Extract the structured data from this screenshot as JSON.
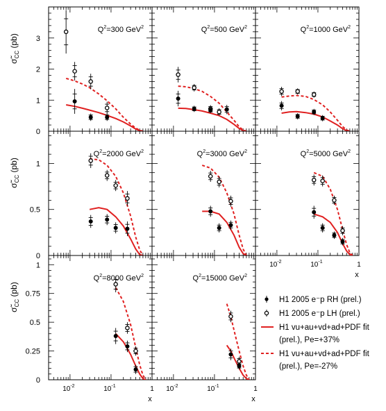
{
  "chart_data": {
    "type": "scatter",
    "xscale": "log",
    "xlim": [
      0.003,
      1.0
    ],
    "xticklabels": [
      "10-2",
      "10-1",
      "1"
    ],
    "xlabel": "x",
    "ylabel": "σ̃CC (pb)",
    "colors": {
      "data": "#000000",
      "fit": "#e02020"
    },
    "legend": {
      "placement": "bottom-right",
      "entries": [
        {
          "key": "rh_data",
          "text": "H1 2005 e⁻p RH (prel.)"
        },
        {
          "key": "lh_data",
          "text": "H1 2005 e⁻p LH (prel.)"
        },
        {
          "key": "rh_fit",
          "text1": "H1 vu+au+vd+ad+PDF fit",
          "text2": "(prel.), Pe=+37%"
        },
        {
          "key": "lh_fit",
          "text1": "H1 vu+au+vd+ad+PDF fit",
          "text2": "(prel.), Pe=-27%"
        }
      ]
    },
    "panels": [
      {
        "label": "Q2=300 GeV2",
        "q2": "300",
        "ylim": [
          0,
          4
        ],
        "yticks": [
          0,
          1,
          2,
          3
        ],
        "series": [
          {
            "key": "lh_data",
            "x": [
              0.008,
              0.013,
              0.032,
              0.08
            ],
            "y": [
              3.2,
              1.93,
              1.6,
              0.75
            ],
            "err": [
              0.7,
              0.3,
              0.25,
              0.2
            ]
          },
          {
            "key": "rh_data",
            "x": [
              0.013,
              0.032,
              0.08
            ],
            "y": [
              0.96,
              0.45,
              0.45
            ],
            "err": [
              0.4,
              0.12,
              0.12
            ]
          },
          {
            "key": "lh_fit",
            "x": [
              0.008,
              0.013,
              0.02,
              0.03,
              0.05,
              0.08,
              0.13,
              0.2,
              0.3,
              0.4,
              0.5,
              0.6
            ],
            "y": [
              1.7,
              1.62,
              1.52,
              1.4,
              1.2,
              0.98,
              0.72,
              0.45,
              0.23,
              0.1,
              0.03,
              0.0
            ]
          },
          {
            "key": "rh_fit",
            "x": [
              0.008,
              0.013,
              0.02,
              0.03,
              0.05,
              0.08,
              0.13,
              0.2,
              0.3,
              0.4,
              0.5,
              0.6
            ],
            "y": [
              0.85,
              0.8,
              0.74,
              0.68,
              0.6,
              0.51,
              0.41,
              0.3,
              0.17,
              0.07,
              0.02,
              0.0
            ]
          }
        ]
      },
      {
        "label": "Q2=500 GeV2",
        "q2": "500",
        "ylim": [
          0,
          4
        ],
        "yticks": [
          0,
          1,
          2,
          3
        ],
        "series": [
          {
            "key": "lh_data",
            "x": [
              0.013,
              0.032,
              0.08,
              0.13
            ],
            "y": [
              1.82,
              1.4,
              0.72,
              0.62
            ],
            "err": [
              0.25,
              0.12,
              0.12,
              0.12
            ]
          },
          {
            "key": "rh_data",
            "x": [
              0.013,
              0.032,
              0.08,
              0.2
            ],
            "y": [
              1.05,
              0.72,
              0.68,
              0.7
            ],
            "err": [
              0.25,
              0.1,
              0.1,
              0.15
            ]
          },
          {
            "key": "lh_fit",
            "x": [
              0.013,
              0.02,
              0.03,
              0.05,
              0.08,
              0.13,
              0.2,
              0.3,
              0.4,
              0.5,
              0.6
            ],
            "y": [
              1.45,
              1.43,
              1.38,
              1.28,
              1.12,
              0.9,
              0.62,
              0.35,
              0.14,
              0.04,
              0.0
            ]
          },
          {
            "key": "rh_fit",
            "x": [
              0.013,
              0.02,
              0.03,
              0.05,
              0.08,
              0.13,
              0.2,
              0.3,
              0.4,
              0.5,
              0.6
            ],
            "y": [
              0.74,
              0.73,
              0.7,
              0.65,
              0.58,
              0.5,
              0.38,
              0.22,
              0.09,
              0.02,
              0.0
            ]
          }
        ]
      },
      {
        "label": "Q2=1000 GeV2",
        "q2": "1000",
        "ylim": [
          0,
          4
        ],
        "yticks": [
          0,
          1,
          2,
          3
        ],
        "series": [
          {
            "key": "lh_data",
            "x": [
              0.013,
              0.032,
              0.08
            ],
            "y": [
              1.28,
              1.28,
              1.18
            ],
            "err": [
              0.15,
              0.1,
              0.1
            ]
          },
          {
            "key": "rh_data",
            "x": [
              0.013,
              0.032,
              0.08,
              0.13
            ],
            "y": [
              0.82,
              0.48,
              0.62,
              0.42
            ],
            "err": [
              0.15,
              0.1,
              0.1,
              0.1
            ]
          },
          {
            "key": "lh_fit",
            "x": [
              0.013,
              0.02,
              0.03,
              0.05,
              0.08,
              0.13,
              0.2,
              0.3,
              0.4,
              0.5,
              0.6
            ],
            "y": [
              1.1,
              1.13,
              1.15,
              1.12,
              1.02,
              0.85,
              0.62,
              0.35,
              0.15,
              0.04,
              0.0
            ]
          },
          {
            "key": "rh_fit",
            "x": [
              0.013,
              0.02,
              0.03,
              0.05,
              0.08,
              0.13,
              0.2,
              0.3,
              0.4,
              0.5,
              0.6
            ],
            "y": [
              0.58,
              0.62,
              0.63,
              0.6,
              0.55,
              0.46,
              0.33,
              0.2,
              0.08,
              0.02,
              0.0
            ]
          }
        ]
      },
      {
        "label": "Q2=2000 GeV2",
        "q2": "2000",
        "ylim": [
          0,
          1.35
        ],
        "yticks": [
          0,
          0.5,
          1
        ],
        "series": [
          {
            "key": "lh_data",
            "x": [
              0.032,
              0.08,
              0.13,
              0.25
            ],
            "y": [
              1.03,
              0.87,
              0.76,
              0.62
            ],
            "err": [
              0.08,
              0.06,
              0.06,
              0.08
            ]
          },
          {
            "key": "rh_data",
            "x": [
              0.032,
              0.08,
              0.13,
              0.25
            ],
            "y": [
              0.37,
              0.39,
              0.3,
              0.29
            ],
            "err": [
              0.07,
              0.06,
              0.06,
              0.08
            ]
          },
          {
            "key": "lh_fit",
            "x": [
              0.03,
              0.05,
              0.08,
              0.13,
              0.2,
              0.3,
              0.4,
              0.5,
              0.6
            ],
            "y": [
              1.05,
              1.04,
              0.98,
              0.86,
              0.68,
              0.43,
              0.2,
              0.06,
              0.0
            ]
          },
          {
            "key": "rh_fit",
            "x": [
              0.03,
              0.05,
              0.08,
              0.13,
              0.2,
              0.3,
              0.4,
              0.5,
              0.6
            ],
            "y": [
              0.5,
              0.52,
              0.5,
              0.42,
              0.32,
              0.18,
              0.07,
              0.01,
              0.0
            ]
          }
        ]
      },
      {
        "label": "Q2=3000 GeV2",
        "q2": "3000",
        "ylim": [
          0,
          1.35
        ],
        "yticks": [
          0,
          0.5,
          1
        ],
        "series": [
          {
            "key": "lh_data",
            "x": [
              0.08,
              0.13,
              0.25
            ],
            "y": [
              0.86,
              0.8,
              0.59
            ],
            "err": [
              0.06,
              0.06,
              0.06
            ]
          },
          {
            "key": "rh_data",
            "x": [
              0.08,
              0.13,
              0.25
            ],
            "y": [
              0.48,
              0.3,
              0.33
            ],
            "err": [
              0.06,
              0.05,
              0.05
            ]
          },
          {
            "key": "lh_fit",
            "x": [
              0.05,
              0.08,
              0.13,
              0.2,
              0.3,
              0.4,
              0.5,
              0.6
            ],
            "y": [
              0.98,
              0.95,
              0.85,
              0.68,
              0.45,
              0.22,
              0.07,
              0.0
            ]
          },
          {
            "key": "rh_fit",
            "x": [
              0.05,
              0.08,
              0.13,
              0.2,
              0.3,
              0.4,
              0.5,
              0.6
            ],
            "y": [
              0.48,
              0.48,
              0.45,
              0.36,
              0.22,
              0.09,
              0.02,
              0.0
            ]
          }
        ]
      },
      {
        "label": "Q2=5000 GeV2",
        "q2": "5000",
        "ylim": [
          0,
          1.35
        ],
        "yticks": [
          0,
          0.5,
          1
        ],
        "series": [
          {
            "key": "lh_data",
            "x": [
              0.08,
              0.13,
              0.25,
              0.4
            ],
            "y": [
              0.82,
              0.81,
              0.6,
              0.27
            ],
            "err": [
              0.06,
              0.06,
              0.05,
              0.05
            ]
          },
          {
            "key": "rh_data",
            "x": [
              0.08,
              0.13,
              0.25,
              0.4
            ],
            "y": [
              0.47,
              0.3,
              0.22,
              0.15
            ],
            "err": [
              0.07,
              0.05,
              0.04,
              0.04
            ]
          },
          {
            "key": "lh_fit",
            "x": [
              0.08,
              0.13,
              0.2,
              0.3,
              0.4,
              0.5,
              0.6,
              0.7
            ],
            "y": [
              0.9,
              0.86,
              0.72,
              0.5,
              0.28,
              0.12,
              0.03,
              0.0
            ]
          },
          {
            "key": "rh_fit",
            "x": [
              0.08,
              0.13,
              0.2,
              0.3,
              0.4,
              0.5,
              0.6,
              0.7
            ],
            "y": [
              0.45,
              0.42,
              0.36,
              0.25,
              0.13,
              0.05,
              0.01,
              0.0
            ]
          }
        ]
      },
      {
        "label": "Q2=8000 GeV2",
        "q2": "8000",
        "ylim": [
          0,
          1.08
        ],
        "yticks": [
          0,
          0.25,
          0.5,
          0.75,
          1
        ],
        "series": [
          {
            "key": "lh_data",
            "x": [
              0.13,
              0.25,
              0.4
            ],
            "y": [
              0.83,
              0.45,
              0.25
            ],
            "err": [
              0.07,
              0.05,
              0.04
            ]
          },
          {
            "key": "rh_data",
            "x": [
              0.13,
              0.25,
              0.4
            ],
            "y": [
              0.38,
              0.29,
              0.09
            ],
            "err": [
              0.07,
              0.05,
              0.04
            ]
          },
          {
            "key": "lh_fit",
            "x": [
              0.13,
              0.2,
              0.3,
              0.4,
              0.5,
              0.6,
              0.7
            ],
            "y": [
              0.8,
              0.68,
              0.48,
              0.28,
              0.13,
              0.04,
              0.0
            ]
          },
          {
            "key": "rh_fit",
            "x": [
              0.13,
              0.2,
              0.3,
              0.4,
              0.5,
              0.6,
              0.7
            ],
            "y": [
              0.4,
              0.33,
              0.22,
              0.12,
              0.05,
              0.01,
              0.0
            ]
          }
        ]
      },
      {
        "label": "Q2=15000 GeV2",
        "q2": "15000",
        "ylim": [
          0,
          1.08
        ],
        "yticks": [
          0,
          0.25,
          0.5,
          0.75,
          1
        ],
        "series": [
          {
            "key": "lh_data",
            "x": [
              0.25,
              0.4
            ],
            "y": [
              0.55,
              0.16
            ],
            "err": [
              0.05,
              0.04
            ]
          },
          {
            "key": "rh_data",
            "x": [
              0.25,
              0.4
            ],
            "y": [
              0.22,
              0.12
            ],
            "err": [
              0.05,
              0.03
            ]
          },
          {
            "key": "lh_fit",
            "x": [
              0.2,
              0.25,
              0.3,
              0.4,
              0.5,
              0.6,
              0.7
            ],
            "y": [
              0.66,
              0.55,
              0.43,
              0.25,
              0.12,
              0.04,
              0.0
            ]
          },
          {
            "key": "rh_fit",
            "x": [
              0.2,
              0.25,
              0.3,
              0.4,
              0.5,
              0.6,
              0.7
            ],
            "y": [
              0.3,
              0.25,
              0.19,
              0.1,
              0.04,
              0.01,
              0.0
            ]
          }
        ]
      }
    ]
  }
}
